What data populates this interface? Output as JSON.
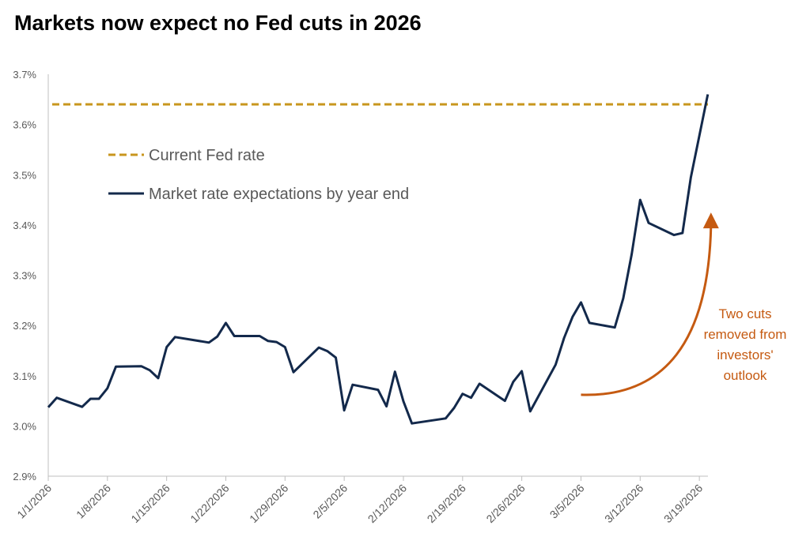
{
  "title": "Markets now expect no Fed cuts in 2026",
  "colors": {
    "fed_rate": "#c8961e",
    "market": "#13294b",
    "annotation": "#c55a11",
    "axis": "#bfbfbf",
    "text": "#595959"
  },
  "chart_data": {
    "type": "line",
    "title": "Markets now expect no Fed cuts in 2026",
    "xlabel": "",
    "ylabel": "",
    "ylim": [
      2.9,
      3.7
    ],
    "yticks": [
      2.9,
      3.0,
      3.1,
      3.2,
      3.3,
      3.4,
      3.5,
      3.6,
      3.7
    ],
    "ytick_labels": [
      "2.9%",
      "3.0%",
      "3.1%",
      "3.2%",
      "3.3%",
      "3.4%",
      "3.5%",
      "3.6%",
      "3.7%"
    ],
    "xticks": [
      "1/1/2026",
      "1/8/2026",
      "1/15/2026",
      "1/22/2026",
      "1/29/2026",
      "2/5/2026",
      "2/12/2026",
      "2/19/2026",
      "2/26/2026",
      "3/5/2026",
      "3/12/2026",
      "3/19/2026"
    ],
    "grid": false,
    "legend_position": "upper-left",
    "series": [
      {
        "name": "Current Fed rate",
        "style": "dashed",
        "color": "#c8961e",
        "constant": 3.64
      },
      {
        "name": "Market rate expectations by year end",
        "style": "solid",
        "color": "#13294b",
        "points": [
          [
            "2026-01-01",
            3.037
          ],
          [
            "2026-01-02",
            3.056
          ],
          [
            "2026-01-05",
            3.038
          ],
          [
            "2026-01-06",
            3.054
          ],
          [
            "2026-01-07",
            3.054
          ],
          [
            "2026-01-08",
            3.075
          ],
          [
            "2026-01-09",
            3.118
          ],
          [
            "2026-01-12",
            3.119
          ],
          [
            "2026-01-13",
            3.111
          ],
          [
            "2026-01-14",
            3.095
          ],
          [
            "2026-01-15",
            3.157
          ],
          [
            "2026-01-16",
            3.177
          ],
          [
            "2026-01-20",
            3.166
          ],
          [
            "2026-01-21",
            3.178
          ],
          [
            "2026-01-22",
            3.205
          ],
          [
            "2026-01-23",
            3.179
          ],
          [
            "2026-01-26",
            3.179
          ],
          [
            "2026-01-27",
            3.169
          ],
          [
            "2026-01-28",
            3.167
          ],
          [
            "2026-01-29",
            3.157
          ],
          [
            "2026-01-30",
            3.107
          ],
          [
            "2026-02-02",
            3.156
          ],
          [
            "2026-02-03",
            3.149
          ],
          [
            "2026-02-04",
            3.136
          ],
          [
            "2026-02-05",
            3.031
          ],
          [
            "2026-02-06",
            3.082
          ],
          [
            "2026-02-09",
            3.072
          ],
          [
            "2026-02-10",
            3.039
          ],
          [
            "2026-02-11",
            3.108
          ],
          [
            "2026-02-12",
            3.049
          ],
          [
            "2026-02-13",
            3.005
          ],
          [
            "2026-02-17",
            3.015
          ],
          [
            "2026-02-18",
            3.036
          ],
          [
            "2026-02-19",
            3.064
          ],
          [
            "2026-02-20",
            3.056
          ],
          [
            "2026-02-21",
            3.084
          ],
          [
            "2026-02-24",
            3.05
          ],
          [
            "2026-02-25",
            3.088
          ],
          [
            "2026-02-26",
            3.109
          ],
          [
            "2026-02-27",
            3.029
          ],
          [
            "2026-03-02",
            3.122
          ],
          [
            "2026-03-03",
            3.175
          ],
          [
            "2026-03-04",
            3.217
          ],
          [
            "2026-03-05",
            3.246
          ],
          [
            "2026-03-06",
            3.205
          ],
          [
            "2026-03-09",
            3.196
          ],
          [
            "2026-03-10",
            3.254
          ],
          [
            "2026-03-11",
            3.342
          ],
          [
            "2026-03-12",
            3.45
          ],
          [
            "2026-03-13",
            3.404
          ],
          [
            "2026-03-16",
            3.38
          ],
          [
            "2026-03-17",
            3.384
          ],
          [
            "2026-03-18",
            3.495
          ],
          [
            "2026-03-20",
            3.66
          ]
        ]
      }
    ],
    "annotations": [
      {
        "text_lines": [
          "Two cuts",
          "removed from",
          "investors'",
          "outlook"
        ],
        "color": "#c55a11",
        "arrow_from": [
          "2026-03-05",
          3.062
        ],
        "arrow_to": [
          "2026-03-20",
          3.42
        ]
      }
    ]
  }
}
